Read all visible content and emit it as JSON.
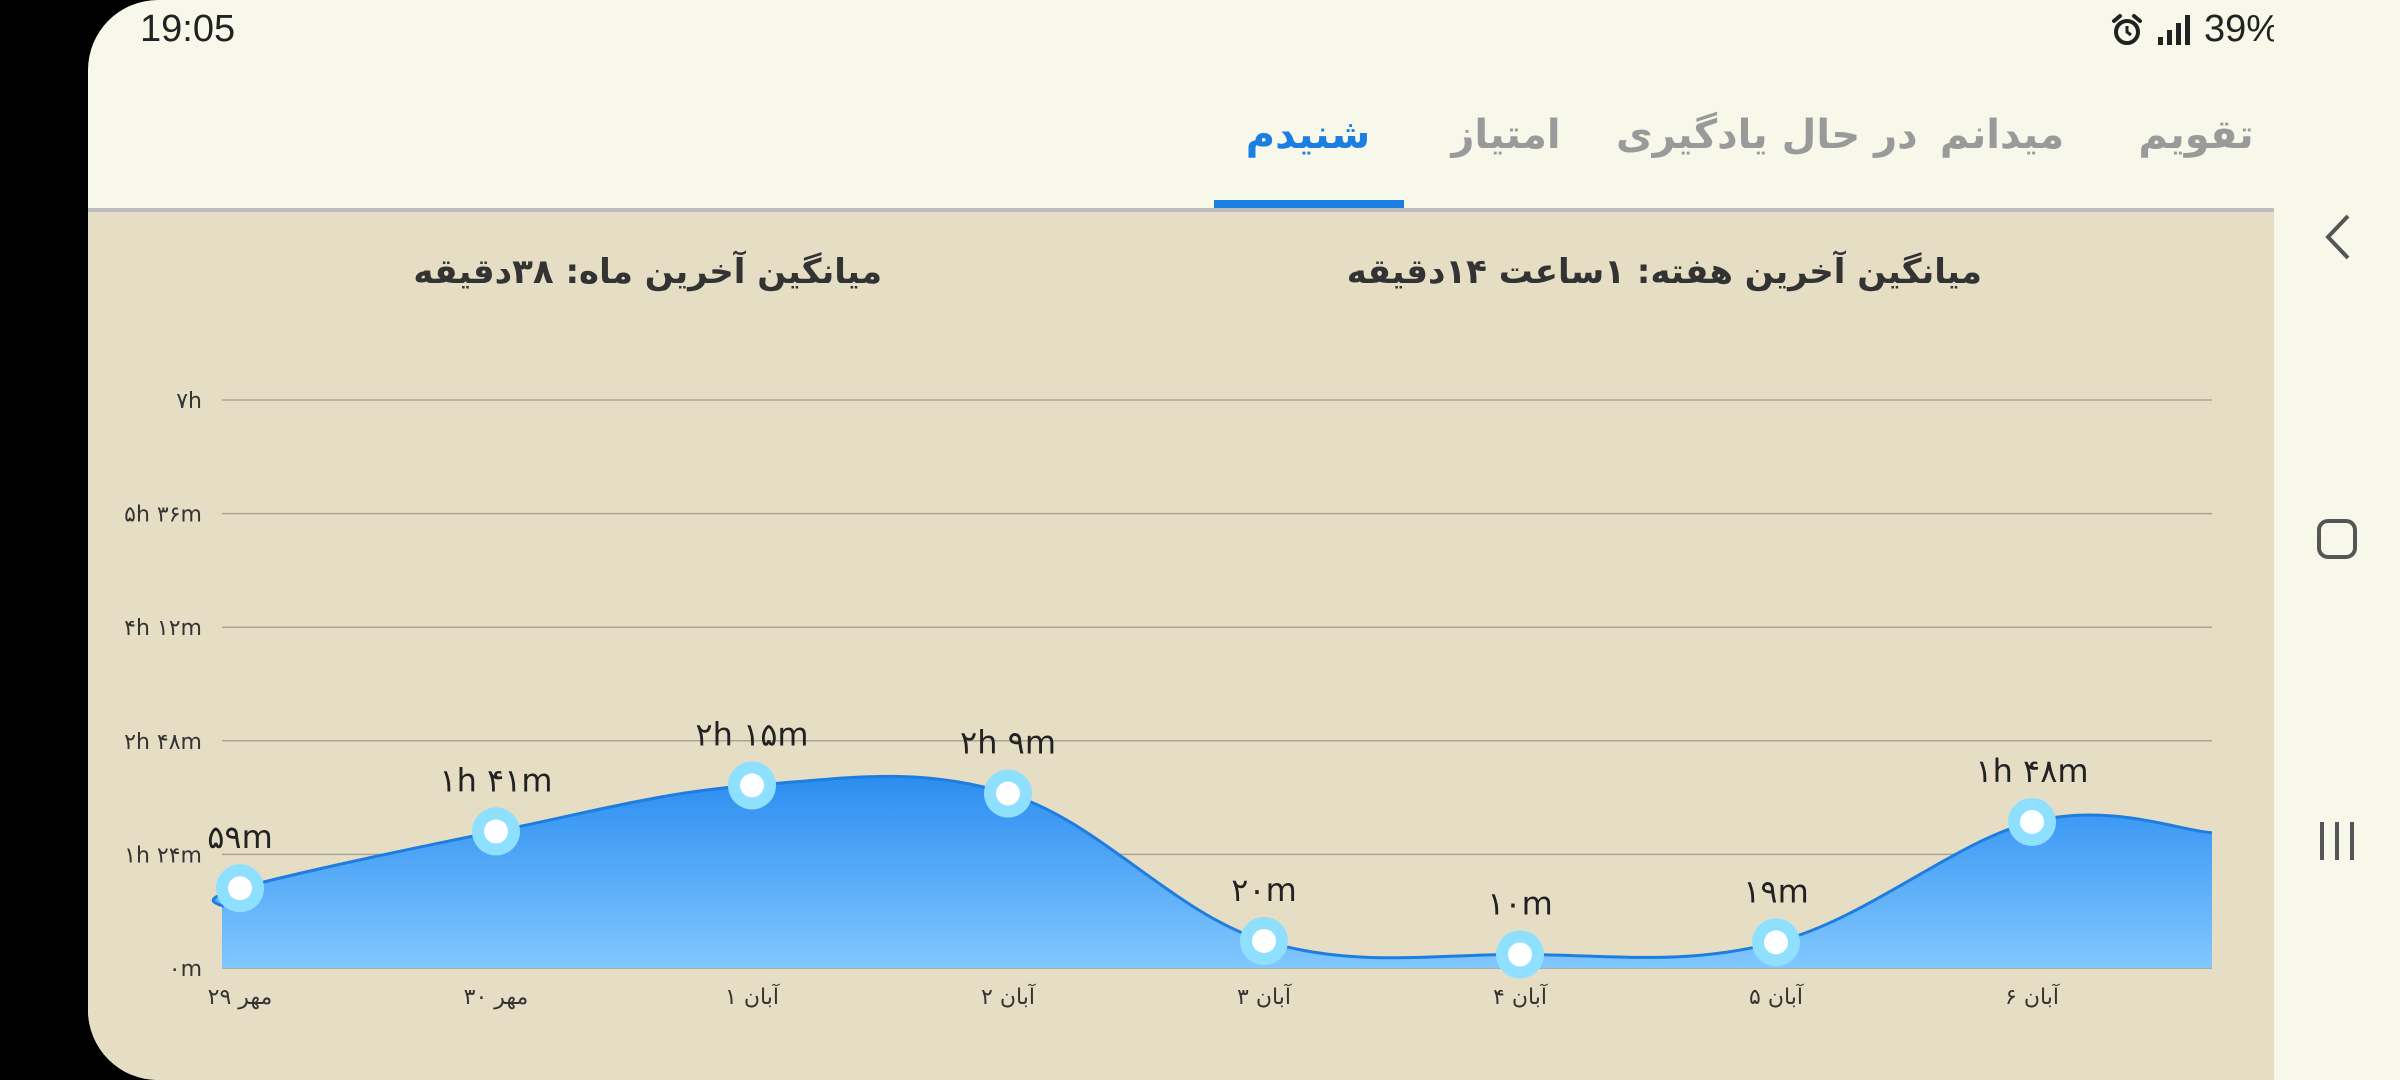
{
  "status": {
    "time": "19:05",
    "battery": "39%"
  },
  "tabs": [
    {
      "label": "تقویم",
      "active": false
    },
    {
      "label": "میدانم",
      "active": false
    },
    {
      "label": "در حال یادگیری",
      "active": false
    },
    {
      "label": "امتیاز",
      "active": false
    },
    {
      "label": "شنیدم",
      "active": true
    }
  ],
  "summary": {
    "week": "میانگین آخرین هفته: ۱ساعت  ۱۴دقیقه",
    "month": "میانگین آخرین ماه: ۳۸دقیقه"
  },
  "colors": {
    "accent": "#1a7fe0",
    "chart_fill_top": "#2b8df0",
    "chart_fill_bottom": "#82c7ff",
    "marker": "#8fe0ff"
  },
  "icons": {
    "back": "chevron-left-icon",
    "home": "square-icon",
    "recents": "recents-icon"
  },
  "chart_data": {
    "type": "area",
    "categories": [
      "۲۹ مهر",
      "۳۰ مهر",
      "۱ آبان",
      "۲ آبان",
      "۳ آبان",
      "۴ آبان",
      "۵ آبان",
      "۶ آبان"
    ],
    "values": [
      59,
      101,
      135,
      129,
      20,
      10,
      19,
      108
    ],
    "value_labels": [
      "۵۹m",
      "۱h ۴۱m",
      "۲h ۱۵m",
      "۲h ۹m",
      "۲۰m",
      "۱۰m",
      "۱۹m",
      "۱h ۴۸m"
    ],
    "y_ticks": [
      0,
      84,
      168,
      252,
      336,
      420
    ],
    "y_tick_labels": [
      "۰m",
      "۱h ۲۴m",
      "۲h ۴۸m",
      "۴h ۱۲m",
      "۵h ۳۶m",
      "۷h"
    ],
    "ylim": [
      0,
      420
    ],
    "grid": true,
    "xlabel": "",
    "ylabel": ""
  }
}
